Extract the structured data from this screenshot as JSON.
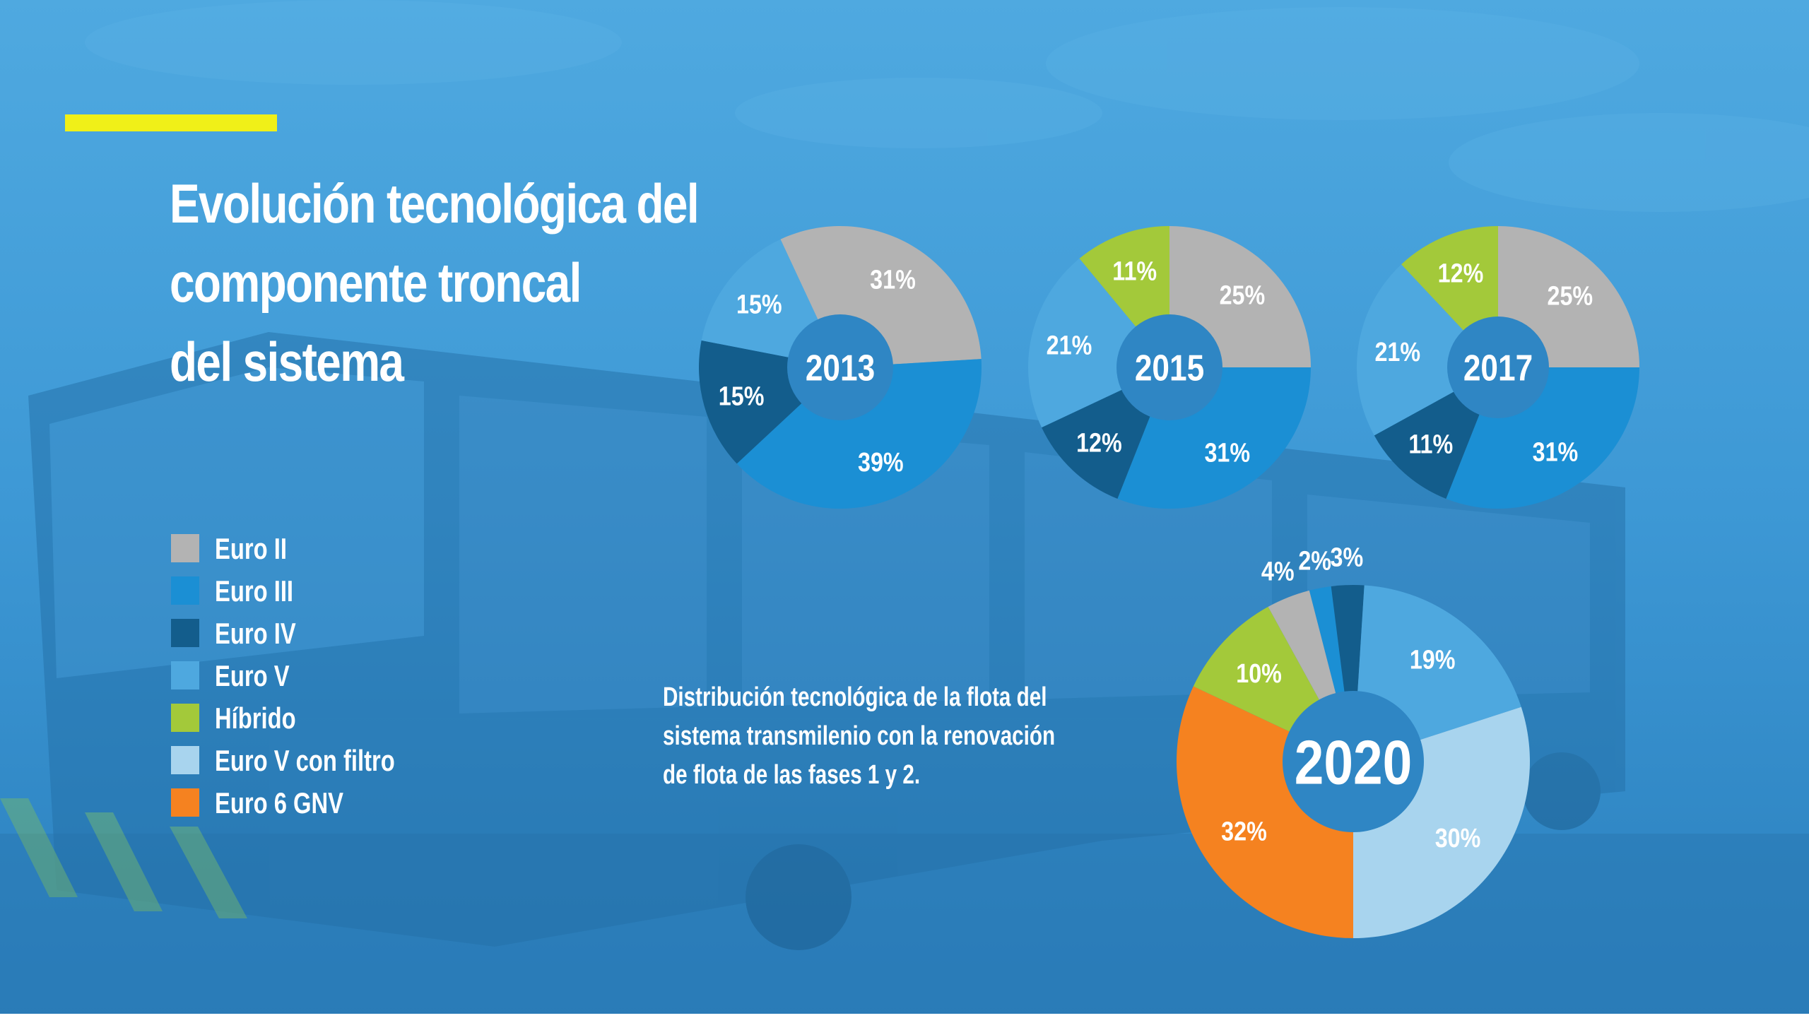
{
  "title": {
    "line1": "Evolución tecnológica del",
    "line2": "componente troncal",
    "line3": "del sistema"
  },
  "colors": {
    "accent": "#f0f018",
    "euro_ii": "#b3b3b3",
    "euro_iii": "#1b8fd4",
    "euro_iv": "#135d8c",
    "euro_v": "#4ea8df",
    "hibrido": "#a3c93a",
    "euro_v_filtro": "#a8d4ee",
    "euro6_gnv": "#f58220"
  },
  "legend": [
    {
      "label": "Euro II",
      "color": "#b3b3b3"
    },
    {
      "label": "Euro III",
      "color": "#1b8fd4"
    },
    {
      "label": "Euro IV",
      "color": "#135d8c"
    },
    {
      "label": "Euro V",
      "color": "#4ea8df"
    },
    {
      "label": "Híbrido",
      "color": "#a3c93a"
    },
    {
      "label": "Euro V con filtro",
      "color": "#a8d4ee"
    },
    {
      "label": "Euro 6 GNV",
      "color": "#f58220"
    }
  ],
  "caption": {
    "line1": "Distribución tecnológica de la flota del",
    "line2": "sistema transmilenio con la renovación",
    "line3": "de flota de las fases 1 y 2."
  },
  "chart_data": [
    {
      "type": "pie",
      "title": "2013",
      "slices": [
        {
          "category": "Euro II",
          "value": 31,
          "label": "31%"
        },
        {
          "category": "Euro III",
          "value": 39,
          "label": "39%"
        },
        {
          "category": "Euro IV",
          "value": 15,
          "label": "15%"
        },
        {
          "category": "Euro V",
          "value": 15,
          "label": "15%"
        }
      ]
    },
    {
      "type": "pie",
      "title": "2015",
      "slices": [
        {
          "category": "Euro II",
          "value": 25,
          "label": "25%"
        },
        {
          "category": "Euro III",
          "value": 31,
          "label": "31%"
        },
        {
          "category": "Euro IV",
          "value": 12,
          "label": "12%"
        },
        {
          "category": "Euro V",
          "value": 21,
          "label": "21%"
        },
        {
          "category": "Híbrido",
          "value": 11,
          "label": "11%"
        }
      ]
    },
    {
      "type": "pie",
      "title": "2017",
      "slices": [
        {
          "category": "Euro II",
          "value": 25,
          "label": "25%"
        },
        {
          "category": "Euro III",
          "value": 31,
          "label": "31%"
        },
        {
          "category": "Euro IV",
          "value": 11,
          "label": "11%"
        },
        {
          "category": "Euro V",
          "value": 21,
          "label": "21%"
        },
        {
          "category": "Híbrido",
          "value": 12,
          "label": "12%"
        }
      ]
    },
    {
      "type": "pie",
      "title": "2020",
      "slices": [
        {
          "category": "Euro III",
          "value": 2,
          "label": "2%"
        },
        {
          "category": "Euro IV",
          "value": 3,
          "label": "3%"
        },
        {
          "category": "Euro V",
          "value": 19,
          "label": "19%"
        },
        {
          "category": "Euro V con filtro",
          "value": 30,
          "label": "30%"
        },
        {
          "category": "Euro 6 GNV",
          "value": 32,
          "label": "32%"
        },
        {
          "category": "Híbrido",
          "value": 10,
          "label": "10%"
        },
        {
          "category": "Euro II",
          "value": 4,
          "label": "4%"
        }
      ]
    }
  ]
}
